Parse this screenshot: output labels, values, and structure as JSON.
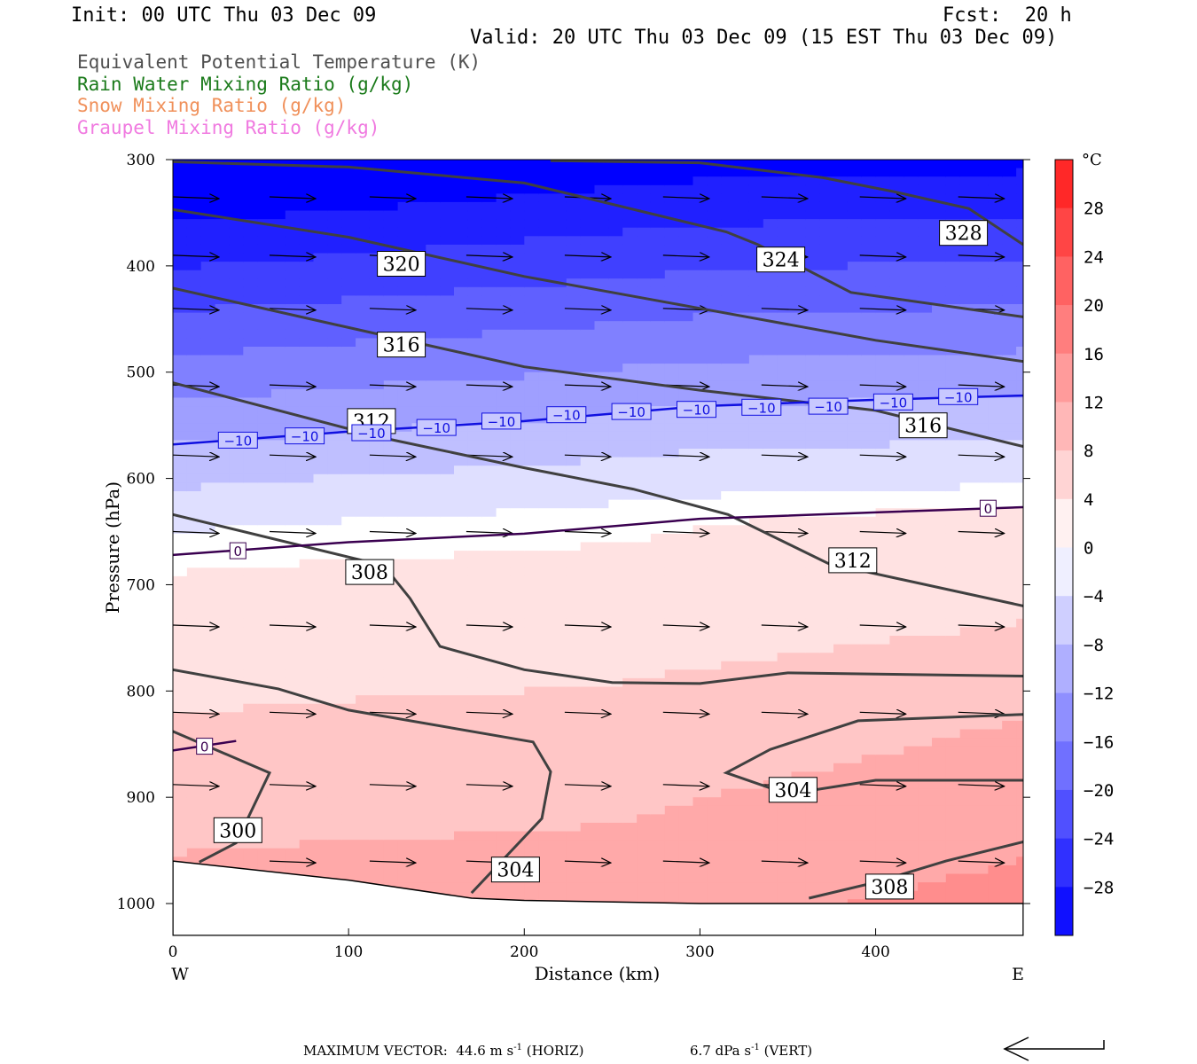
{
  "header": {
    "init": "Init: 00 UTC Thu 03 Dec 09",
    "fcst": "Fcst:  20 h",
    "valid": "Valid: 20 UTC Thu 03 Dec 09 (15 EST Thu 03 Dec 09)"
  },
  "legend": [
    {
      "label": "Equivalent Potential Temperature (K)",
      "color": "#505050"
    },
    {
      "label": "Rain Water Mixing Ratio (g/kg)",
      "color": "#1a7a1a"
    },
    {
      "label": "Snow Mixing Ratio (g/kg)",
      "color": "#f0905a"
    },
    {
      "label": "Graupel Mixing Ratio (g/kg)",
      "color": "#f07ae0"
    }
  ],
  "footer": {
    "label": "MAXIMUM VECTOR:",
    "horiz_value": "44.6 m s",
    "horiz_exp": "-1",
    "horiz_unit": "(HORIZ)",
    "vert_value": "6.7 dPa s",
    "vert_exp": "-1",
    "vert_unit": "(VERT)"
  },
  "chart_data": {
    "type": "cross-section",
    "xlabel": "Distance (km)",
    "ylabel": "Pressure (hPa)",
    "xlim": [
      0,
      484
    ],
    "ylim": [
      1030,
      300
    ],
    "x_ticks": [
      0,
      100,
      200,
      300,
      400
    ],
    "y_ticks": [
      300,
      400,
      500,
      600,
      700,
      800,
      900,
      1000
    ],
    "x_end_labels": {
      "left": "W",
      "right": "E"
    },
    "colorbar": {
      "unit": "°C",
      "range": [
        -32,
        32
      ],
      "step": 4,
      "tick_labels": [
        28,
        24,
        20,
        16,
        12,
        8,
        4,
        0,
        -4,
        -8,
        -12,
        -16,
        -20,
        -24,
        -28
      ],
      "cold_color": "#0000ff",
      "warm_color": "#ff1a1a",
      "neutral_color": "#ffffff"
    },
    "temperature_contours": [
      {
        "label": "0",
        "points": [
          [
            0,
            672
          ],
          [
            100,
            660
          ],
          [
            200,
            652
          ],
          [
            300,
            638
          ],
          [
            400,
            632
          ],
          [
            484,
            627
          ]
        ],
        "color": "#3a0050",
        "label_positions": [
          [
            37,
            668
          ],
          [
            464,
            628
          ]
        ]
      },
      {
        "label": "0",
        "points": [
          [
            0,
            856
          ],
          [
            36,
            847
          ]
        ],
        "color": "#3a0050",
        "label_positions": [
          [
            18,
            852
          ]
        ]
      },
      {
        "label": "-10",
        "points": [
          [
            0,
            568
          ],
          [
            100,
            556
          ],
          [
            200,
            546
          ],
          [
            300,
            532
          ],
          [
            400,
            526
          ],
          [
            484,
            522
          ]
        ],
        "color": "#1010e0",
        "label_positions": [
          [
            37,
            564
          ],
          [
            75,
            560
          ],
          [
            113,
            557
          ],
          [
            150,
            552
          ],
          [
            187,
            546
          ],
          [
            224,
            540
          ],
          [
            261,
            537
          ],
          [
            298,
            535
          ],
          [
            335,
            533
          ],
          [
            373,
            532
          ],
          [
            410,
            528
          ],
          [
            447,
            523
          ]
        ]
      }
    ],
    "theta_e_contours": [
      {
        "label": "300",
        "points": [
          [
            15,
            961
          ],
          [
            36,
            943
          ],
          [
            55,
            877
          ],
          [
            0,
            838
          ]
        ],
        "label_positions": [
          [
            37,
            931
          ]
        ]
      },
      {
        "label": "304",
        "points": [
          [
            170,
            990
          ],
          [
            210,
            920
          ],
          [
            215,
            876
          ],
          [
            205,
            848
          ],
          [
            100,
            818
          ],
          [
            60,
            798
          ],
          [
            0,
            780
          ]
        ],
        "label_positions": [
          [
            195,
            968
          ]
        ]
      },
      {
        "label": "304",
        "points": [
          [
            484,
            884
          ],
          [
            400,
            884
          ],
          [
            350,
            897
          ],
          [
            315,
            877
          ],
          [
            340,
            855
          ],
          [
            390,
            828
          ],
          [
            484,
            822
          ]
        ],
        "label_positions": [
          [
            353,
            893
          ]
        ]
      },
      {
        "label": "308",
        "points": [
          [
            0,
            634
          ],
          [
            120,
            682
          ],
          [
            135,
            713
          ],
          [
            152,
            758
          ],
          [
            200,
            780
          ],
          [
            250,
            792
          ],
          [
            300,
            793
          ],
          [
            350,
            783
          ],
          [
            484,
            786
          ]
        ],
        "label_positions": [
          [
            112,
            688
          ]
        ]
      },
      {
        "label": "308",
        "points": [
          [
            362,
            995
          ],
          [
            400,
            980
          ],
          [
            440,
            960
          ],
          [
            484,
            942
          ]
        ],
        "label_positions": [
          [
            408,
            984
          ]
        ]
      },
      {
        "label": "312",
        "points": [
          [
            0,
            510
          ],
          [
            120,
            562
          ],
          [
            200,
            590
          ],
          [
            262,
            610
          ],
          [
            316,
            634
          ],
          [
            373,
            680
          ],
          [
            484,
            720
          ]
        ],
        "label_positions": [
          [
            113,
            546
          ],
          [
            387,
            677
          ]
        ]
      },
      {
        "label": "316",
        "points": [
          [
            0,
            421
          ],
          [
            100,
            458
          ],
          [
            200,
            495
          ],
          [
            300,
            517
          ],
          [
            400,
            536
          ],
          [
            484,
            570
          ]
        ],
        "label_positions": [
          [
            130,
            474
          ],
          [
            427,
            550
          ]
        ]
      },
      {
        "label": "320",
        "points": [
          [
            0,
            347
          ],
          [
            100,
            373
          ],
          [
            200,
            410
          ],
          [
            300,
            440
          ],
          [
            400,
            470
          ],
          [
            484,
            490
          ]
        ],
        "label_positions": [
          [
            130,
            398
          ]
        ]
      },
      {
        "label": "324",
        "points": [
          [
            0,
            302
          ],
          [
            100,
            307
          ],
          [
            200,
            322
          ],
          [
            315,
            368
          ],
          [
            333,
            380
          ],
          [
            386,
            425
          ],
          [
            484,
            448
          ]
        ],
        "label_positions": [
          [
            346,
            394
          ]
        ]
      },
      {
        "label": "328",
        "points": [
          [
            215,
            301
          ],
          [
            300,
            303
          ],
          [
            370,
            317
          ],
          [
            410,
            330
          ],
          [
            453,
            346
          ],
          [
            484,
            380
          ]
        ],
        "label_positions": [
          [
            450,
            369
          ]
        ]
      }
    ],
    "wind_vectors": {
      "rows": [
        {
          "p": 335,
          "x": [
            0,
            55,
            112,
            167,
            223,
            279,
            335,
            391,
            447
          ]
        },
        {
          "p": 390,
          "x": [
            0,
            55,
            112,
            167,
            223,
            279,
            335,
            391,
            447
          ]
        },
        {
          "p": 440,
          "x": [
            0,
            55,
            112,
            167,
            223,
            279,
            335,
            391,
            447
          ]
        },
        {
          "p": 512,
          "x": [
            0,
            55,
            112,
            167,
            223,
            279,
            335,
            391,
            447
          ]
        },
        {
          "p": 578,
          "x": [
            0,
            55,
            112,
            167,
            223,
            279,
            335,
            391,
            447
          ]
        },
        {
          "p": 650,
          "x": [
            0,
            55,
            112,
            167,
            223,
            279,
            335,
            391,
            447
          ]
        },
        {
          "p": 738,
          "x": [
            0,
            55,
            112,
            167,
            223,
            279,
            335,
            391,
            447
          ]
        },
        {
          "p": 820,
          "x": [
            0,
            55,
            112,
            167,
            223,
            279,
            335,
            391,
            447
          ]
        },
        {
          "p": 888,
          "x": [
            0,
            55,
            112,
            167,
            223,
            279,
            335,
            391,
            447
          ]
        },
        {
          "p": 960,
          "x": [
            55,
            112,
            167,
            223,
            279,
            335,
            391,
            447
          ]
        }
      ]
    },
    "surface_pressure": [
      [
        0,
        960
      ],
      [
        100,
        978
      ],
      [
        170,
        995
      ],
      [
        200,
        997
      ],
      [
        300,
        1000
      ],
      [
        484,
        1000
      ]
    ]
  }
}
